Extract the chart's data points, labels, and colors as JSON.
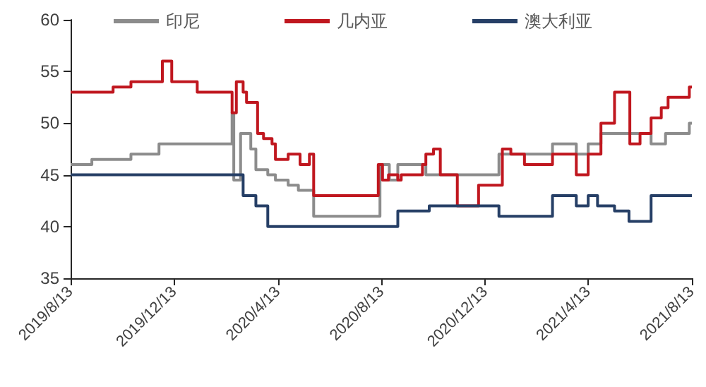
{
  "chart_data": {
    "type": "step",
    "legend": "top",
    "grid": false,
    "marker": "none",
    "line_style": "solid",
    "ylim": [
      35,
      60
    ],
    "yticks": [
      35,
      40,
      45,
      50,
      55,
      60
    ],
    "xlim": [
      "2019-08-13",
      "2021-08-13"
    ],
    "xticks": [
      {
        "value": "2019-08-13",
        "label": "2019/8/13"
      },
      {
        "value": "2019-12-13",
        "label": "2019/12/13"
      },
      {
        "value": "2020-04-13",
        "label": "2020/4/13"
      },
      {
        "value": "2020-08-13",
        "label": "2020/8/13"
      },
      {
        "value": "2020-12-13",
        "label": "2020/12/13"
      },
      {
        "value": "2021-04-13",
        "label": "2021/4/13"
      },
      {
        "value": "2021-08-13",
        "label": "2021/8/13"
      }
    ],
    "series": [
      {
        "name": "印尼",
        "color": "#8c8c8c",
        "x": [
          "2019-08-13",
          "2019-09-07",
          "2019-10-23",
          "2019-11-25",
          "2020-02-19",
          "2020-02-21",
          "2020-02-29",
          "2020-03-12",
          "2020-03-18",
          "2020-04-01",
          "2020-04-10",
          "2020-04-25",
          "2020-05-07",
          "2020-05-25",
          "2020-08-11",
          "2020-08-22",
          "2020-09-01",
          "2020-10-04",
          "2020-12-29",
          "2021-03-02",
          "2021-03-30",
          "2021-04-13",
          "2021-04-28",
          "2021-06-26",
          "2021-07-13",
          "2021-08-10",
          "2021-08-13"
        ],
        "values": [
          46,
          46.5,
          47,
          48,
          51,
          44.5,
          49,
          47.5,
          45.5,
          45,
          44.5,
          44,
          43.5,
          41,
          46,
          44.5,
          46,
          45,
          47,
          48,
          47,
          48,
          49,
          48,
          49,
          50,
          50
        ]
      },
      {
        "name": "几内亚",
        "color": "#c0171f",
        "x": [
          "2019-08-13",
          "2019-10-02",
          "2019-10-23",
          "2019-11-29",
          "2019-12-10",
          "2020-01-09",
          "2020-02-19",
          "2020-02-24",
          "2020-03-03",
          "2020-03-07",
          "2020-03-20",
          "2020-03-27",
          "2020-04-06",
          "2020-04-10",
          "2020-04-25",
          "2020-05-09",
          "2020-05-20",
          "2020-05-25",
          "2020-08-09",
          "2020-08-14",
          "2020-08-21",
          "2020-09-01",
          "2020-09-05",
          "2020-09-30",
          "2020-10-04",
          "2020-10-13",
          "2020-10-21",
          "2020-11-10",
          "2020-12-05",
          "2021-01-02",
          "2021-01-12",
          "2021-01-28",
          "2021-03-02",
          "2021-03-30",
          "2021-04-13",
          "2021-04-28",
          "2021-05-14",
          "2021-06-01",
          "2021-06-13",
          "2021-06-26",
          "2021-07-08",
          "2021-07-16",
          "2021-08-10",
          "2021-08-13"
        ],
        "values": [
          53,
          53.5,
          54,
          56,
          54,
          53,
          51,
          54,
          53,
          52,
          49,
          48.5,
          48,
          46.5,
          47,
          46,
          47,
          43,
          46,
          44.5,
          45,
          44.5,
          45,
          46,
          47,
          47.5,
          45,
          42,
          44,
          47.5,
          47,
          46,
          47,
          45,
          47,
          50,
          53,
          48,
          49,
          50.5,
          51.5,
          52.5,
          53.5,
          53.5
        ]
      },
      {
        "name": "澳大利亚",
        "color": "#263f66",
        "x": [
          "2019-08-13",
          "2020-03-03",
          "2020-03-18",
          "2020-04-01",
          "2020-09-01",
          "2020-10-08",
          "2020-12-29",
          "2021-03-02",
          "2021-03-30",
          "2021-04-13",
          "2021-04-24",
          "2021-05-14",
          "2021-05-31",
          "2021-06-26",
          "2021-08-13"
        ],
        "values": [
          45,
          43,
          42,
          40,
          41.5,
          42,
          41,
          43,
          42,
          43,
          42,
          41.5,
          40.5,
          43,
          43
        ]
      }
    ]
  }
}
